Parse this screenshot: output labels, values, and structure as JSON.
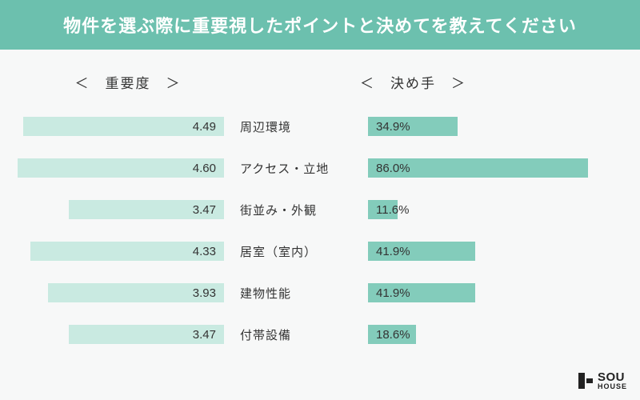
{
  "title": "物件を選ぶ際に重要視したポイントと決めてを教えてください",
  "subhead_left": "＜　重要度　＞",
  "subhead_right": "＜　決め手　＞",
  "left_chart": {
    "type": "bar",
    "max": 5.0,
    "bar_color": "#c9eae1",
    "text_color": "#333333",
    "fontsize": 15
  },
  "right_chart": {
    "type": "bar",
    "max": 100.0,
    "bar_color": "#83ccbb",
    "text_color": "#333333",
    "fontsize": 15
  },
  "rows": [
    {
      "label": "周辺環境",
      "importance": 4.49,
      "importance_str": "4.49",
      "decision": 34.9,
      "decision_str": "34.9%"
    },
    {
      "label": "アクセス・立地",
      "importance": 4.6,
      "importance_str": "4.60",
      "decision": 86.0,
      "decision_str": "86.0%"
    },
    {
      "label": "街並み・外観",
      "importance": 3.47,
      "importance_str": "3.47",
      "decision": 11.6,
      "decision_str": "11.6%"
    },
    {
      "label": "居室（室内）",
      "importance": 4.33,
      "importance_str": "4.33",
      "decision": 41.9,
      "decision_str": "41.9%"
    },
    {
      "label": "建物性能",
      "importance": 3.93,
      "importance_str": "3.93",
      "decision": 41.9,
      "decision_str": "41.9%"
    },
    {
      "label": "付帯設備",
      "importance": 3.47,
      "importance_str": "3.47",
      "decision": 18.6,
      "decision_str": "18.6%"
    }
  ],
  "colors": {
    "header_bg": "#6cc0ae",
    "header_text": "#ffffff",
    "body_bg": "#f7f8f8",
    "text": "#333333"
  },
  "logo": {
    "top": "SOU",
    "bottom": "HOUSE"
  }
}
